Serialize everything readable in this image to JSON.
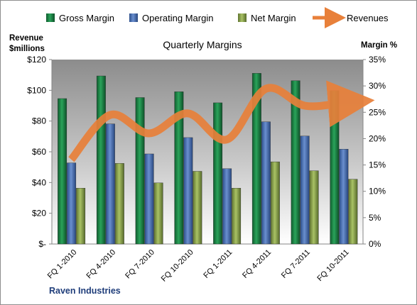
{
  "chart_data": {
    "type": "bar",
    "title": "Quarterly Margins",
    "company": "Raven Industries",
    "y_left_label_line1": "Revenue",
    "y_left_label_line2": "$millions",
    "y_right_label": "Margin %",
    "y_left_range": [
      0,
      120
    ],
    "y_left_ticks": [
      "$-",
      "$20",
      "$40",
      "$60",
      "$80",
      "$100",
      "$120"
    ],
    "y_left_tick_values": [
      0,
      20,
      40,
      60,
      80,
      100,
      120
    ],
    "y_right_range": [
      0,
      35
    ],
    "y_right_ticks": [
      "0%",
      "5%",
      "10%",
      "15%",
      "20%",
      "25%",
      "30%",
      "35%"
    ],
    "y_right_tick_values": [
      0,
      5,
      10,
      15,
      20,
      25,
      30,
      35
    ],
    "categories": [
      "FQ 1-2010",
      "FQ 4-2010",
      "FQ 7-2010",
      "FQ 10-2010",
      "FQ 1-2011",
      "FQ 4-2011",
      "FQ 7-2011",
      "FQ 10-2011"
    ],
    "series": [
      {
        "name": "Gross Margin",
        "type": "bar",
        "axis": "right",
        "color": "#1f8a4c",
        "values": [
          27.6,
          31.9,
          27.8,
          28.9,
          26.8,
          32.4,
          31.0,
          29.1
        ]
      },
      {
        "name": "Operating Margin",
        "type": "bar",
        "axis": "right",
        "color": "#4a72b8",
        "values": [
          15.4,
          22.8,
          17.1,
          20.2,
          14.3,
          23.2,
          20.5,
          18.0
        ]
      },
      {
        "name": "Net Margin",
        "type": "bar",
        "axis": "right",
        "color": "#8fa84e",
        "values": [
          10.6,
          15.3,
          11.6,
          13.8,
          10.6,
          15.6,
          13.9,
          12.3
        ]
      },
      {
        "name": "Revenues",
        "type": "line",
        "axis": "left",
        "color": "#e8803a",
        "values": [
          55,
          84,
          72,
          85,
          68,
          101,
          90,
          92
        ]
      }
    ],
    "legend": "top",
    "grid": false
  }
}
